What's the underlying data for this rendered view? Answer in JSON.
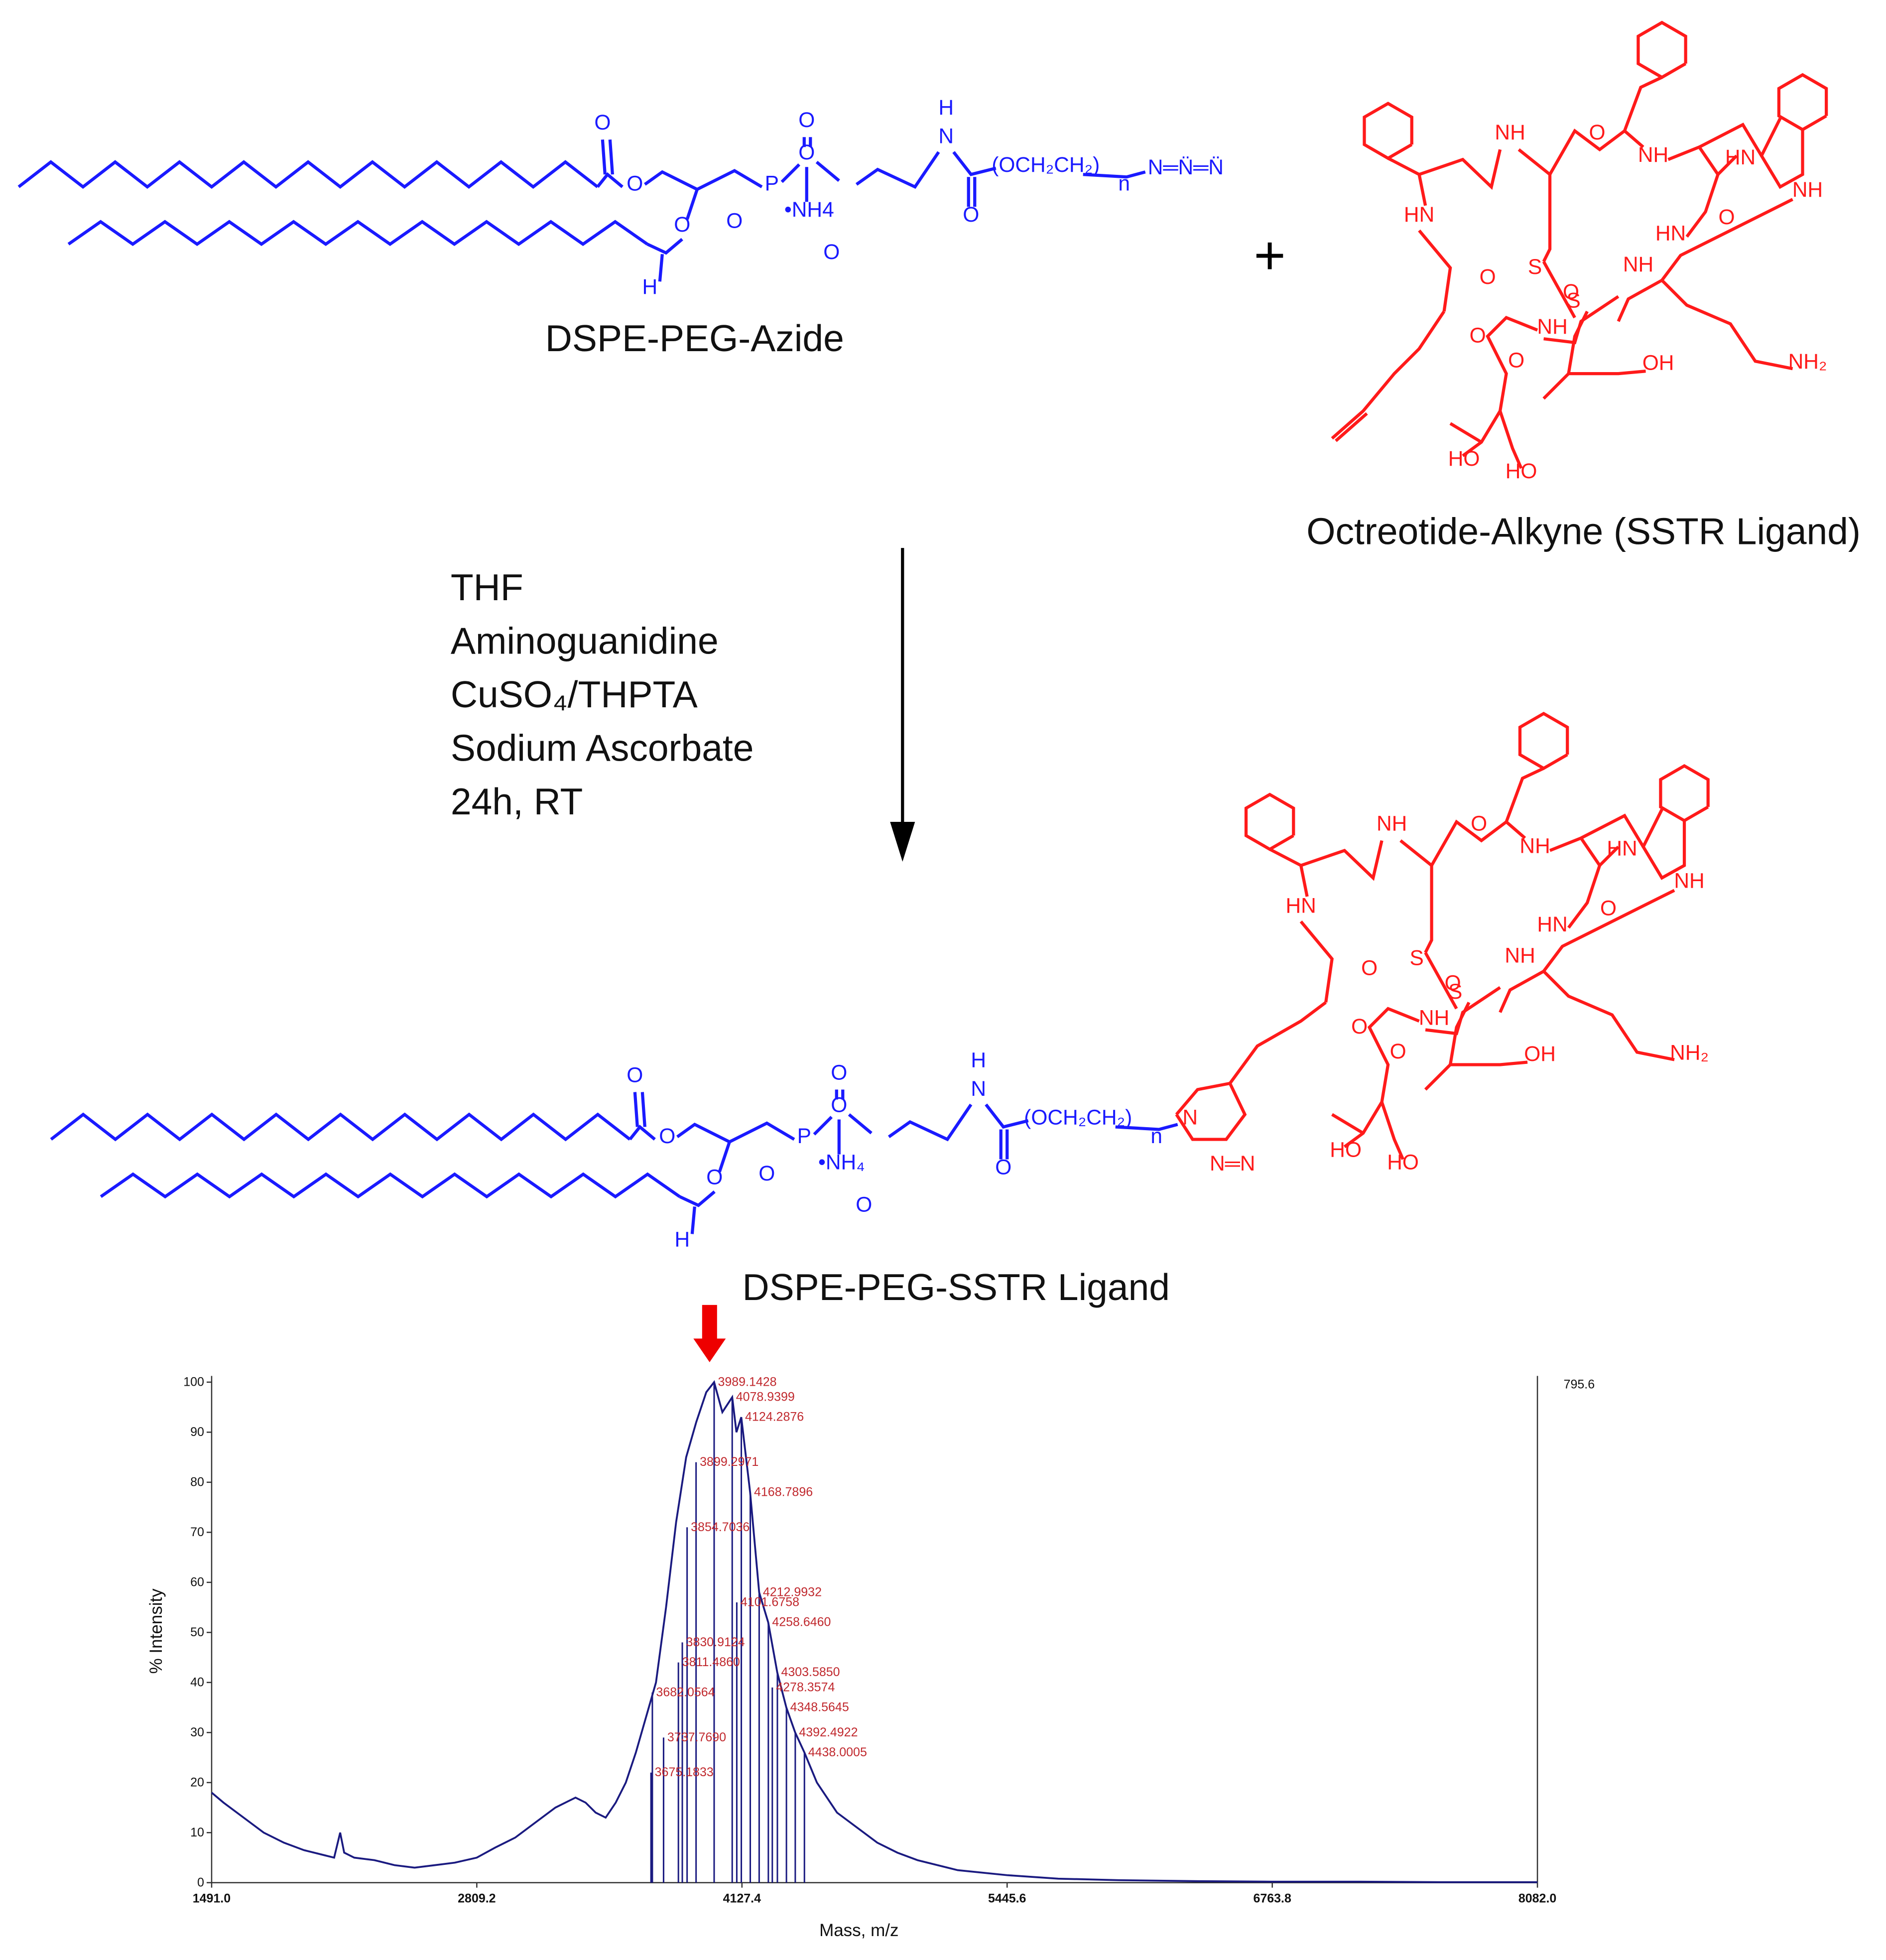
{
  "scheme": {
    "reactant_1": {
      "name": "DSPE-PEG-Azide",
      "atoms": [
        "O",
        "O",
        "O",
        "H",
        "O",
        "P",
        "O",
        "O",
        "•NH4",
        "O",
        "H",
        "N",
        "O",
        "(OCH₂CH₂)",
        "n",
        "N═N̈═N̈"
      ]
    },
    "plus": "+",
    "reactant_2": {
      "name": "Octreotide-Alkyne (SSTR Ligand)",
      "atoms": [
        "HN",
        "O",
        "NH",
        "S",
        "S",
        "O",
        "NH",
        "HN",
        "NH",
        "O",
        "HN",
        "O",
        "NH",
        "O",
        "NH",
        "OH",
        "NH₂",
        "O",
        "HO",
        "HO"
      ]
    },
    "conditions": [
      "THF",
      "Aminoguanidine",
      "CuSO₄/THPTA",
      "Sodium Ascorbate",
      "24h, RT"
    ],
    "product": {
      "name": "DSPE-PEG-SSTR Ligand",
      "lipid_atoms": [
        "O",
        "O",
        "O",
        "H",
        "O",
        "P",
        "O",
        "O",
        "•NH₄",
        "O",
        "H",
        "N",
        "O",
        "(OCH₂CH₂)",
        "n"
      ],
      "triazole_atoms": [
        "N",
        "N═N"
      ],
      "ligand_atoms": [
        "HN",
        "O",
        "NH",
        "S",
        "S",
        "O",
        "NH",
        "HN",
        "NH",
        "O",
        "HN",
        "O",
        "NH",
        "O",
        "NH",
        "OH",
        "NH₂",
        "O",
        "HO",
        "HO"
      ]
    }
  },
  "chart_data": {
    "type": "line",
    "xlabel": "Mass, m/z",
    "ylabel": "% Intensity",
    "max_counts": "795.6",
    "xlim": [
      1491,
      8082
    ],
    "ylim": [
      0,
      100
    ],
    "xticks": [
      {
        "value": 1491,
        "label": "1491.0"
      },
      {
        "value": 2809.2,
        "label": "2809.2"
      },
      {
        "value": 4127.4,
        "label": "4127.4"
      },
      {
        "value": 5445.6,
        "label": "5445.6"
      },
      {
        "value": 6763.8,
        "label": "6763.8"
      },
      {
        "value": 8082,
        "label": "8082.0"
      }
    ],
    "yticks": [
      0,
      10,
      20,
      30,
      40,
      50,
      60,
      70,
      80,
      90,
      100
    ],
    "x": [
      1491,
      1550,
      1650,
      1750,
      1850,
      1950,
      2050,
      2100,
      2130,
      2150,
      2200,
      2300,
      2400,
      2500,
      2600,
      2700,
      2809,
      2900,
      3000,
      3100,
      3200,
      3300,
      3350,
      3400,
      3450,
      3500,
      3550,
      3600,
      3650,
      3700,
      3750,
      3800,
      3850,
      3900,
      3950,
      3989,
      4030,
      4079,
      4100,
      4124,
      4168,
      4213,
      4258,
      4303,
      4348,
      4392,
      4438,
      4500,
      4600,
      4700,
      4800,
      4900,
      5000,
      5200,
      5445,
      5700,
      6000,
      6400,
      6763,
      7200,
      7600,
      8082
    ],
    "series": [
      {
        "color": "#1a1a80",
        "values": [
          18,
          16,
          13,
          10,
          8,
          6.5,
          5.5,
          5,
          10,
          6,
          5,
          4.5,
          3.5,
          3,
          3.5,
          4,
          5,
          7,
          9,
          12,
          15,
          17,
          16,
          14,
          13,
          16,
          20,
          26,
          33,
          40,
          55,
          72,
          85,
          92,
          98,
          100,
          94,
          97,
          90,
          93,
          78,
          58,
          52,
          42,
          35,
          30,
          26,
          20,
          14,
          11,
          8,
          6,
          4.5,
          2.5,
          1.5,
          0.8,
          0.5,
          0.3,
          0.2,
          0.2,
          0.1,
          0.1
        ]
      }
    ],
    "peak_color": "#c0282d",
    "peaks": [
      {
        "x": 3989.1428,
        "y": 100,
        "label": "3989.1428"
      },
      {
        "x": 4078.9399,
        "y": 97,
        "label": "4078.9399"
      },
      {
        "x": 4124.2876,
        "y": 93,
        "label": "4124.2876"
      },
      {
        "x": 3899.2971,
        "y": 84,
        "label": "3899.2971"
      },
      {
        "x": 4168.7896,
        "y": 78,
        "label": "4168.7896"
      },
      {
        "x": 3854.7036,
        "y": 71,
        "label": "3854.7036"
      },
      {
        "x": 4212.9932,
        "y": 58,
        "label": "4212.9932"
      },
      {
        "x": 4101.6758,
        "y": 56,
        "label": "4101.6758"
      },
      {
        "x": 4258.646,
        "y": 52,
        "label": "4258.6460"
      },
      {
        "x": 3830.9124,
        "y": 48,
        "label": "3830.9124"
      },
      {
        "x": 3811.486,
        "y": 44,
        "label": "3811.4860"
      },
      {
        "x": 4303.585,
        "y": 42,
        "label": "4303.5850"
      },
      {
        "x": 4278.3574,
        "y": 39,
        "label": "4278.3574"
      },
      {
        "x": 3682.0564,
        "y": 38,
        "label": "3682.0564"
      },
      {
        "x": 4348.5645,
        "y": 35,
        "label": "4348.5645"
      },
      {
        "x": 4392.4922,
        "y": 30,
        "label": "4392.4922"
      },
      {
        "x": 3737.769,
        "y": 29,
        "label": "3737.7690"
      },
      {
        "x": 4438.0005,
        "y": 26,
        "label": "4438.0005"
      },
      {
        "x": 3675.1833,
        "y": 22,
        "label": "3675.1833"
      }
    ]
  }
}
